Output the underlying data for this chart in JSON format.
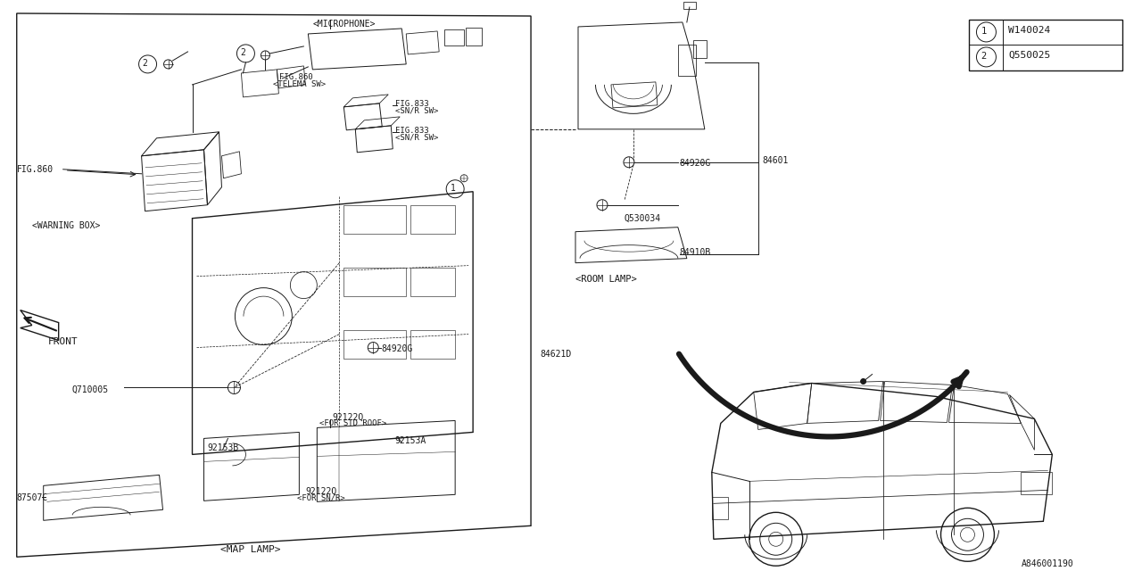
{
  "bg_color": "#ffffff",
  "line_color": "#1a1a1a",
  "bottom_ref": "A846001190",
  "legend": [
    {
      "num": "1",
      "code": "W140024"
    },
    {
      "num": "2",
      "code": "Q550025"
    }
  ]
}
